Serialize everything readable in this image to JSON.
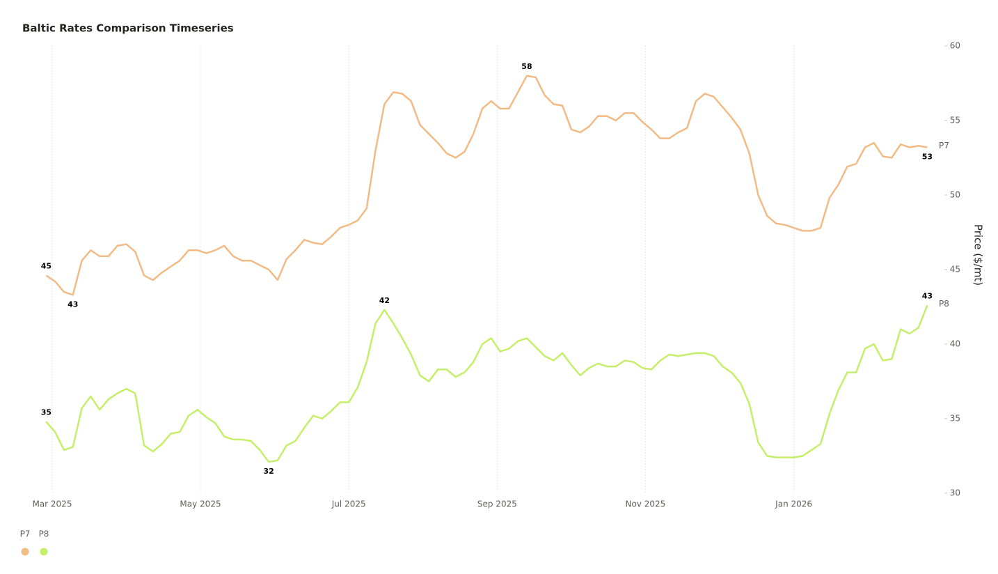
{
  "chart_data": {
    "type": "line",
    "title": "Baltic Rates Comparison Timeseries",
    "y_label": "Price ($/mt)",
    "x": [
      2025.16,
      2025.17,
      2025.18,
      2025.19,
      2025.2,
      2025.21,
      2025.22,
      2025.23,
      2025.24,
      2025.25,
      2025.26,
      2025.27,
      2025.28,
      2025.29,
      2025.3,
      2025.31,
      2025.32,
      2025.33,
      2025.34,
      2025.35,
      2025.36,
      2025.37,
      2025.38,
      2025.39,
      2025.4,
      2025.41,
      2025.42,
      2025.43,
      2025.44,
      2025.45,
      2025.46,
      2025.47,
      2025.48,
      2025.49,
      2025.5,
      2025.51,
      2025.52,
      2025.53,
      2025.54,
      2025.55,
      2025.56,
      2025.57,
      2025.58,
      2025.59,
      2025.6,
      2025.61,
      2025.62,
      2025.63,
      2025.64,
      2025.65,
      2025.66,
      2025.67,
      2025.68,
      2025.69,
      2025.7,
      2025.71,
      2025.72,
      2025.73,
      2025.74,
      2025.75,
      2025.76,
      2025.77,
      2025.78,
      2025.79,
      2025.8,
      2025.81,
      2025.82,
      2025.83,
      2025.84,
      2025.85,
      2025.86,
      2025.87,
      2025.88,
      2025.89,
      2025.9,
      2025.91,
      2025.92,
      2025.93,
      2025.94,
      2025.95,
      2025.96,
      2025.97,
      2025.98,
      2025.99,
      2026.0,
      2026.01,
      2026.02,
      2026.03,
      2026.04,
      2026.05,
      2026.06,
      2026.07,
      2026.08,
      2026.09,
      2026.1,
      2026.11,
      2026.12,
      2026.13,
      2026.14,
      2026.15
    ],
    "series": [
      {
        "name": "P7",
        "color": "#f2bb85",
        "values": [
          44.6,
          44.2,
          43.5,
          43.3,
          45.6,
          46.3,
          45.9,
          45.9,
          46.6,
          46.7,
          46.2,
          44.6,
          44.3,
          44.8,
          45.2,
          45.6,
          46.3,
          46.3,
          46.1,
          46.3,
          46.6,
          45.9,
          45.6,
          45.6,
          45.3,
          45.0,
          44.3,
          45.7,
          46.3,
          47.0,
          46.8,
          46.7,
          47.2,
          47.8,
          48.0,
          48.3,
          49.1,
          53.0,
          56.1,
          56.9,
          56.8,
          56.3,
          54.7,
          54.1,
          53.5,
          52.8,
          52.5,
          52.9,
          54.1,
          55.8,
          56.3,
          55.8,
          55.8,
          56.9,
          58.0,
          57.9,
          56.7,
          56.1,
          56.0,
          54.4,
          54.2,
          54.6,
          55.3,
          55.3,
          55.0,
          55.5,
          55.5,
          54.9,
          54.4,
          53.8,
          53.8,
          54.2,
          54.5,
          56.3,
          56.8,
          56.6,
          55.9,
          55.2,
          54.4,
          52.8,
          50.0,
          48.6,
          48.1,
          48.0,
          47.8,
          47.6,
          47.6,
          47.8,
          49.8,
          50.7,
          51.9,
          52.1,
          53.2,
          53.5,
          52.6,
          52.5,
          53.4,
          53.2,
          53.3,
          53.2
        ],
        "value_labels": [
          "45",
          null,
          null,
          "43",
          null,
          null,
          null,
          null,
          null,
          null,
          null,
          null,
          null,
          null,
          null,
          null,
          null,
          null,
          null,
          null,
          null,
          null,
          null,
          null,
          null,
          null,
          null,
          null,
          null,
          null,
          null,
          null,
          null,
          null,
          null,
          null,
          null,
          null,
          null,
          null,
          null,
          null,
          null,
          null,
          null,
          null,
          null,
          null,
          null,
          null,
          null,
          null,
          null,
          null,
          "58",
          null,
          null,
          null,
          null,
          null,
          null,
          null,
          null,
          null,
          null,
          null,
          null,
          null,
          null,
          null,
          null,
          null,
          null,
          null,
          null,
          null,
          null,
          null,
          null,
          null,
          null,
          null,
          null,
          null,
          null,
          null,
          null,
          null,
          null,
          null,
          null,
          null,
          null,
          null,
          null,
          null,
          null,
          null,
          null,
          "53"
        ]
      },
      {
        "name": "P8",
        "color": "#c5ef6a",
        "values": [
          34.8,
          34.1,
          32.9,
          33.1,
          35.7,
          36.5,
          35.6,
          36.3,
          36.7,
          37.0,
          36.7,
          33.2,
          32.8,
          33.3,
          34.0,
          34.1,
          35.2,
          35.6,
          35.1,
          34.7,
          33.8,
          33.6,
          33.6,
          33.5,
          32.9,
          32.1,
          32.2,
          33.2,
          33.5,
          34.4,
          35.2,
          35.0,
          35.5,
          36.1,
          36.1,
          37.1,
          38.8,
          41.4,
          42.3,
          41.4,
          40.4,
          39.3,
          37.9,
          37.5,
          38.3,
          38.3,
          37.8,
          38.1,
          38.8,
          40.0,
          40.4,
          39.5,
          39.7,
          40.2,
          40.4,
          39.8,
          39.2,
          38.9,
          39.4,
          38.6,
          37.9,
          38.4,
          38.7,
          38.5,
          38.5,
          38.9,
          38.8,
          38.4,
          38.3,
          38.9,
          39.3,
          39.2,
          39.3,
          39.4,
          39.4,
          39.2,
          38.5,
          38.1,
          37.4,
          36.0,
          33.4,
          32.5,
          32.4,
          32.4,
          32.4,
          32.5,
          32.9,
          33.3,
          35.3,
          36.9,
          38.1,
          38.1,
          39.7,
          40.0,
          38.9,
          39.0,
          41.0,
          40.7,
          41.1,
          42.6
        ],
        "value_labels": [
          "35",
          null,
          null,
          null,
          null,
          null,
          null,
          null,
          null,
          null,
          null,
          null,
          null,
          null,
          null,
          null,
          null,
          null,
          null,
          null,
          null,
          null,
          null,
          null,
          null,
          "32",
          null,
          null,
          null,
          null,
          null,
          null,
          null,
          null,
          null,
          null,
          null,
          null,
          "42",
          null,
          null,
          null,
          null,
          null,
          null,
          null,
          null,
          null,
          null,
          null,
          null,
          null,
          null,
          null,
          null,
          null,
          null,
          null,
          null,
          null,
          null,
          null,
          null,
          null,
          null,
          null,
          null,
          null,
          null,
          null,
          null,
          null,
          null,
          null,
          null,
          null,
          null,
          null,
          null,
          null,
          null,
          null,
          null,
          null,
          null,
          null,
          null,
          null,
          null,
          null,
          null,
          null,
          null,
          null,
          null,
          null,
          null,
          null,
          null,
          "43"
        ]
      }
    ],
    "xlim": [
      2025.155,
      2026.152
    ],
    "xticks": [
      {
        "value": 2025.1667,
        "label": "Mar 2025"
      },
      {
        "value": 2025.3333,
        "label": "May 2025"
      },
      {
        "value": 2025.5,
        "label": "Jul 2025"
      },
      {
        "value": 2025.6667,
        "label": "Sep 2025"
      },
      {
        "value": 2025.8333,
        "label": "Nov 2025"
      },
      {
        "value": 2026.0,
        "label": "Jan 2026"
      }
    ],
    "ylim": [
      30,
      60
    ],
    "yticks": [
      30,
      35,
      40,
      45,
      50,
      55,
      60
    ],
    "grid": "x",
    "y_axis_side": "right",
    "legend": "bottom-left"
  }
}
